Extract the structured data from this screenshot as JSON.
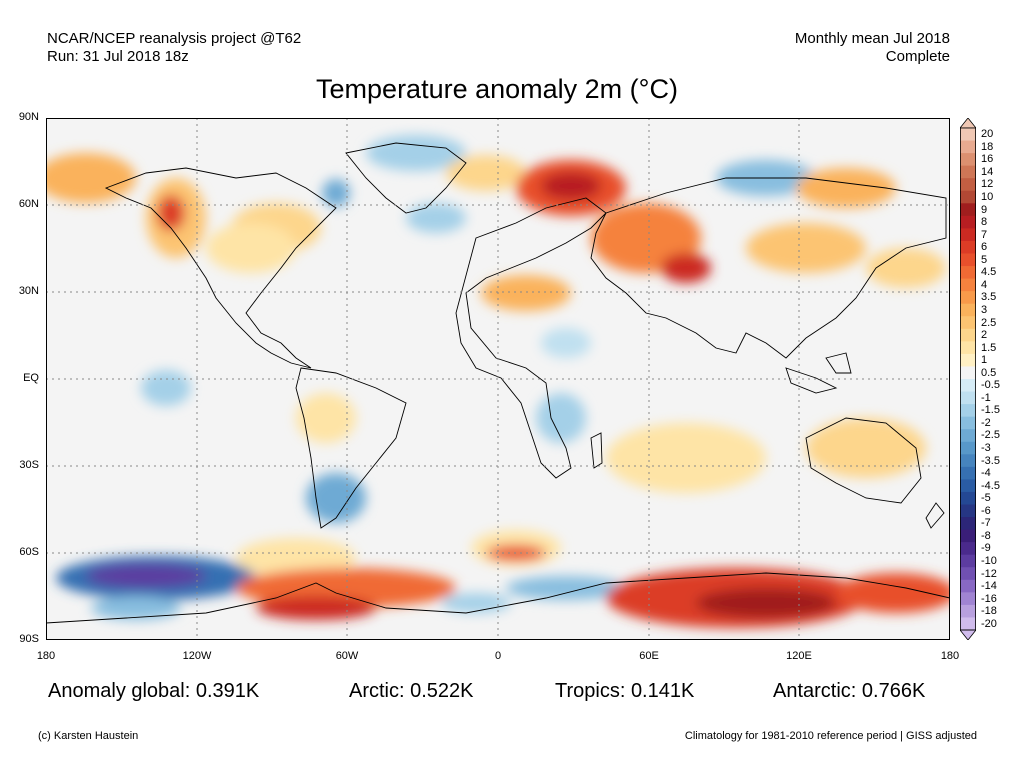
{
  "header": {
    "source_line": "NCAR/NCEP reanalysis project @T62",
    "run_line": "Run: 31 Jul 2018 18z",
    "period_line": "Monthly mean Jul 2018",
    "status_line": "Complete"
  },
  "title": "Temperature anomaly 2m (°C)",
  "axes": {
    "lat_labels": [
      "90N",
      "60N",
      "30N",
      "EQ",
      "30S",
      "60S",
      "90S"
    ],
    "lon_labels": [
      "180",
      "120W",
      "60W",
      "0",
      "60E",
      "120E",
      "180"
    ]
  },
  "colorbar": {
    "labels": [
      "20",
      "18",
      "16",
      "14",
      "12",
      "10",
      "9",
      "8",
      "7",
      "6",
      "5",
      "4.5",
      "4",
      "3.5",
      "3",
      "2.5",
      "2",
      "1.5",
      "1",
      "0.5",
      "-0.5",
      "-1",
      "-1.5",
      "-2",
      "-2.5",
      "-3",
      "-3.5",
      "-4",
      "-4.5",
      "-5",
      "-6",
      "-7",
      "-8",
      "-9",
      "-10",
      "-12",
      "-14",
      "-16",
      "-18",
      "-20"
    ],
    "colors": [
      "#f0c8b4",
      "#e8aa90",
      "#dc9070",
      "#cf7656",
      "#c25e42",
      "#b24834",
      "#a01e1e",
      "#b81e22",
      "#cc2a22",
      "#dc3c26",
      "#e8502c",
      "#f06a34",
      "#f5823e",
      "#f89a4a",
      "#fab25c",
      "#fcc472",
      "#fdd68c",
      "#fee4a6",
      "#fff0c4",
      "#f4f4f4",
      "#d6ecf6",
      "#c0e0f0",
      "#a4d0e8",
      "#88bedf",
      "#6eaad4",
      "#5898c9",
      "#4684be",
      "#3670b2",
      "#2a5ca4",
      "#244894",
      "#263684",
      "#2c2678",
      "#3a1e78",
      "#4a2a8c",
      "#5c3ca0",
      "#7050b2",
      "#8868c4",
      "#a084d2",
      "#b8a0de",
      "#d0bcec"
    ]
  },
  "stats": {
    "global": "Anomaly global: 0.391K",
    "arctic": "Arctic: 0.522K",
    "tropics": "Tropics: 0.141K",
    "antarctic": "Antarctic: 0.766K"
  },
  "footer": {
    "credit": "(c) Karsten Haustein",
    "climatology": "Climatology for 1981-2010 reference period | GISS adjusted"
  }
}
